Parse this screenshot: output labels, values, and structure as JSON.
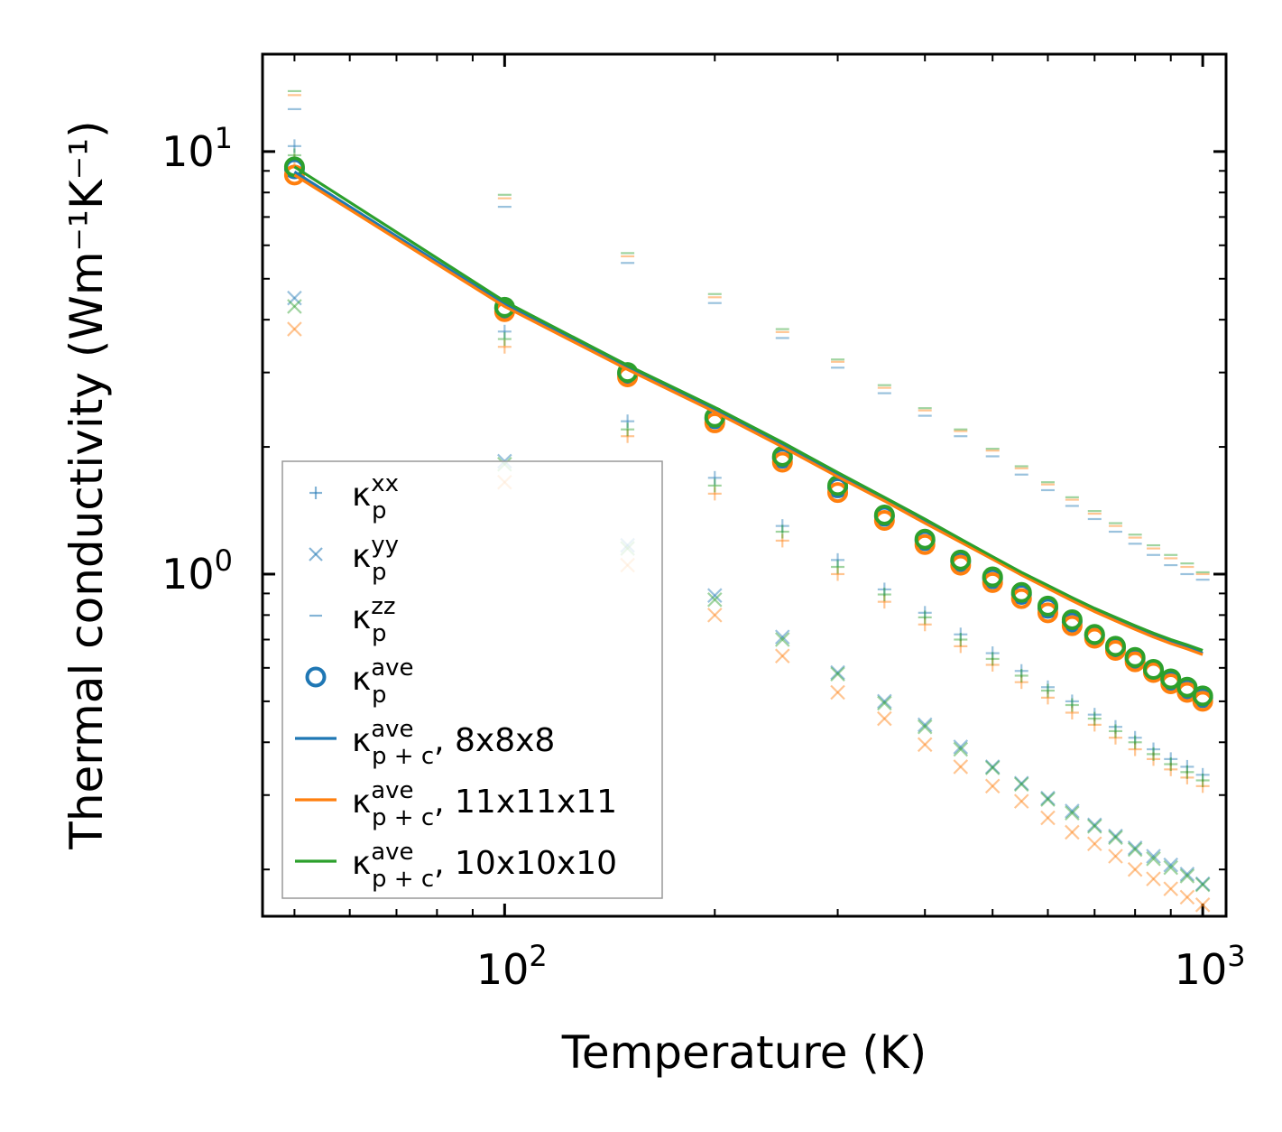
{
  "chart_data": {
    "type": "scatter",
    "xscale": "log",
    "yscale": "log",
    "xlim": [
      45,
      1080
    ],
    "ylim": [
      0.155,
      17
    ],
    "xlabel": "Temperature (K)",
    "ylabel": "Thermal conductivity (Wm⁻¹K⁻¹)",
    "xticks": [
      {
        "base": "10",
        "exp": "2",
        "value": 100
      },
      {
        "base": "10",
        "exp": "3",
        "value": 1000
      }
    ],
    "yticks": [
      {
        "base": "10",
        "exp": "0",
        "value": 1
      },
      {
        "base": "10",
        "exp": "1",
        "value": 10
      }
    ],
    "x": [
      50,
      100,
      150,
      200,
      250,
      300,
      350,
      400,
      450,
      500,
      550,
      600,
      650,
      700,
      750,
      800,
      850,
      900,
      950,
      1000
    ],
    "configs": [
      {
        "name": "8x8x8",
        "color": "#1f77b4"
      },
      {
        "name": "11x11x11",
        "color": "#ff7f0e"
      },
      {
        "name": "10x10x10",
        "color": "#2ca02c"
      }
    ],
    "series": [
      {
        "name": "κ_p^xx, 8x8x8",
        "marker": "plus",
        "color": "#1f77b4",
        "values": [
          10.3,
          3.75,
          2.3,
          1.69,
          1.3,
          1.08,
          0.92,
          0.81,
          0.72,
          0.65,
          0.59,
          0.54,
          0.5,
          0.465,
          0.435,
          0.41,
          0.385,
          0.365,
          0.35,
          0.335
        ]
      },
      {
        "name": "κ_p^xx, 11x11x11",
        "marker": "plus",
        "color": "#ff7f0e",
        "values": [
          9.5,
          3.45,
          2.12,
          1.55,
          1.2,
          1.0,
          0.86,
          0.76,
          0.675,
          0.61,
          0.555,
          0.51,
          0.47,
          0.44,
          0.41,
          0.385,
          0.365,
          0.345,
          0.33,
          0.315
        ]
      },
      {
        "name": "κ_p^xx, 10x10x10",
        "marker": "plus",
        "color": "#2ca02c",
        "values": [
          9.8,
          3.6,
          2.2,
          1.62,
          1.26,
          1.04,
          0.895,
          0.79,
          0.7,
          0.63,
          0.575,
          0.53,
          0.49,
          0.455,
          0.425,
          0.4,
          0.375,
          0.355,
          0.34,
          0.325
        ]
      },
      {
        "name": "κ_p^yy, 8x8x8",
        "marker": "x",
        "color": "#1f77b4",
        "values": [
          4.5,
          1.85,
          1.17,
          0.89,
          0.71,
          0.585,
          0.5,
          0.44,
          0.39,
          0.35,
          0.32,
          0.295,
          0.275,
          0.255,
          0.24,
          0.225,
          0.215,
          0.205,
          0.195,
          0.185
        ]
      },
      {
        "name": "κ_p^yy, 11x11x11",
        "marker": "x",
        "color": "#ff7f0e",
        "values": [
          3.8,
          1.65,
          1.05,
          0.8,
          0.64,
          0.525,
          0.455,
          0.395,
          0.35,
          0.315,
          0.29,
          0.265,
          0.245,
          0.23,
          0.215,
          0.2,
          0.19,
          0.18,
          0.172,
          0.165
        ]
      },
      {
        "name": "κ_p^yy, 10x10x10",
        "marker": "x",
        "color": "#2ca02c",
        "values": [
          4.3,
          1.82,
          1.15,
          0.87,
          0.7,
          0.58,
          0.495,
          0.435,
          0.385,
          0.348,
          0.318,
          0.293,
          0.272,
          0.253,
          0.238,
          0.223,
          0.212,
          0.202,
          0.193,
          0.184
        ]
      },
      {
        "name": "κ_p^zz, 8x8x8",
        "marker": "hline",
        "color": "#1f77b4",
        "values": [
          12.6,
          7.4,
          5.45,
          4.38,
          3.62,
          3.08,
          2.68,
          2.37,
          2.12,
          1.9,
          1.72,
          1.58,
          1.45,
          1.35,
          1.26,
          1.18,
          1.11,
          1.05,
          1.0,
          0.97
        ]
      },
      {
        "name": "κ_p^zz, 11x11x11",
        "marker": "hline",
        "color": "#ff7f0e",
        "values": [
          13.6,
          7.75,
          5.65,
          4.52,
          3.74,
          3.18,
          2.76,
          2.44,
          2.18,
          1.96,
          1.78,
          1.63,
          1.5,
          1.39,
          1.3,
          1.22,
          1.15,
          1.09,
          1.04,
          1.0
        ]
      },
      {
        "name": "κ_p^zz, 10x10x10",
        "marker": "hline",
        "color": "#2ca02c",
        "values": [
          13.9,
          7.9,
          5.75,
          4.6,
          3.8,
          3.22,
          2.8,
          2.47,
          2.2,
          1.98,
          1.8,
          1.65,
          1.52,
          1.41,
          1.32,
          1.24,
          1.17,
          1.11,
          1.06,
          1.01
        ]
      },
      {
        "name": "κ_p^ave, 8x8x8",
        "marker": "circle",
        "color": "#1f77b4",
        "values": [
          9.1,
          4.25,
          2.98,
          2.33,
          1.88,
          1.6,
          1.37,
          1.2,
          1.07,
          0.975,
          0.895,
          0.83,
          0.77,
          0.715,
          0.668,
          0.63,
          0.59,
          0.56,
          0.535,
          0.51
        ]
      },
      {
        "name": "κ_p^ave, 11x11x11",
        "marker": "circle",
        "color": "#ff7f0e",
        "values": [
          8.8,
          4.18,
          2.93,
          2.28,
          1.84,
          1.56,
          1.34,
          1.175,
          1.05,
          0.955,
          0.875,
          0.81,
          0.755,
          0.705,
          0.66,
          0.62,
          0.585,
          0.55,
          0.525,
          0.5
        ]
      },
      {
        "name": "κ_p^ave, 10x10x10",
        "marker": "circle",
        "color": "#2ca02c",
        "values": [
          9.2,
          4.28,
          3.0,
          2.35,
          1.9,
          1.62,
          1.38,
          1.21,
          1.08,
          0.985,
          0.905,
          0.84,
          0.78,
          0.72,
          0.675,
          0.635,
          0.595,
          0.565,
          0.54,
          0.515
        ]
      },
      {
        "name": "κ_p+c^ave, 8x8x8",
        "marker": "line",
        "color": "#1f77b4",
        "values": [
          8.95,
          4.35,
          3.08,
          2.45,
          2.02,
          1.72,
          1.5,
          1.33,
          1.2,
          1.09,
          1.0,
          0.93,
          0.87,
          0.82,
          0.78,
          0.745,
          0.715,
          0.69,
          0.67,
          0.65
        ]
      },
      {
        "name": "κ_p+c^ave, 11x11x11",
        "marker": "line",
        "color": "#ff7f0e",
        "values": [
          8.8,
          4.3,
          3.05,
          2.42,
          2.0,
          1.7,
          1.49,
          1.32,
          1.19,
          1.085,
          0.995,
          0.925,
          0.865,
          0.815,
          0.775,
          0.74,
          0.71,
          0.685,
          0.665,
          0.645
        ]
      },
      {
        "name": "κ_p+c^ave, 10x10x10",
        "marker": "line",
        "color": "#2ca02c",
        "values": [
          9.2,
          4.42,
          3.12,
          2.48,
          2.05,
          1.74,
          1.52,
          1.35,
          1.21,
          1.1,
          1.01,
          0.94,
          0.88,
          0.83,
          0.79,
          0.755,
          0.725,
          0.7,
          0.68,
          0.66
        ]
      }
    ],
    "legend": {
      "position": "lower-left",
      "entries": [
        {
          "symbol": "kappa",
          "sup": "xx",
          "sub": "p",
          "suffix": "",
          "marker": "plus",
          "color": "#1f77b4"
        },
        {
          "symbol": "kappa",
          "sup": "yy",
          "sub": "p",
          "suffix": "",
          "marker": "x",
          "color": "#1f77b4"
        },
        {
          "symbol": "kappa",
          "sup": "zz",
          "sub": "p",
          "suffix": "",
          "marker": "hline",
          "color": "#1f77b4"
        },
        {
          "symbol": "kappa",
          "sup": "ave",
          "sub": "p",
          "suffix": "",
          "marker": "circle",
          "color": "#1f77b4"
        },
        {
          "symbol": "kappa",
          "sup": "ave",
          "sub": "p + c",
          "suffix": ", 8x8x8",
          "marker": "line",
          "color": "#1f77b4"
        },
        {
          "symbol": "kappa",
          "sup": "ave",
          "sub": "p + c",
          "suffix": ", 11x11x11",
          "marker": "line",
          "color": "#ff7f0e"
        },
        {
          "symbol": "kappa",
          "sup": "ave",
          "sub": "p + c",
          "suffix": ", 10x10x10",
          "marker": "line",
          "color": "#2ca02c"
        }
      ]
    },
    "kappa_glyph": "κ"
  }
}
